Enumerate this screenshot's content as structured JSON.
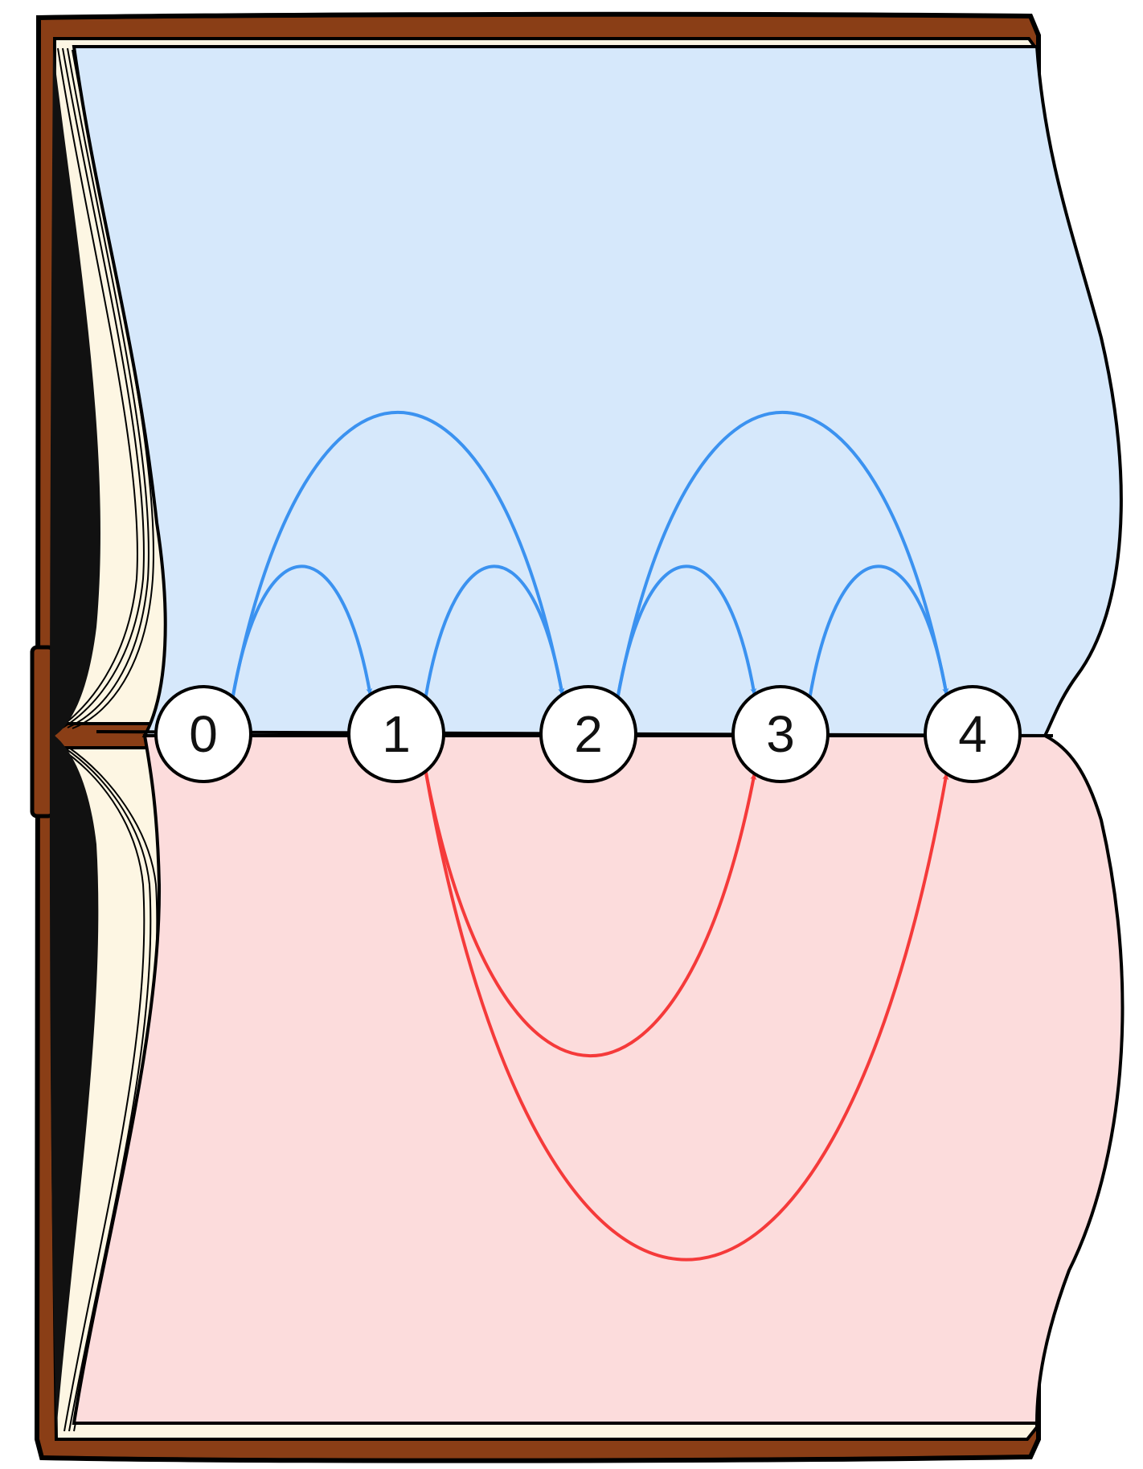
{
  "diagram": {
    "nodes": [
      "0",
      "1",
      "2",
      "3",
      "4"
    ],
    "edges_above": [
      {
        "from": "0",
        "to": "1"
      },
      {
        "from": "0",
        "to": "2"
      },
      {
        "from": "1",
        "to": "2"
      },
      {
        "from": "2",
        "to": "3"
      },
      {
        "from": "2",
        "to": "4"
      },
      {
        "from": "3",
        "to": "4"
      }
    ],
    "edges_below": [
      {
        "from": "1",
        "to": "3"
      },
      {
        "from": "1",
        "to": "4"
      }
    ]
  },
  "colors": {
    "upper_page": "#d6e8fb",
    "lower_page": "#fcdcdc",
    "blue_edge": "#3b92f0",
    "red_edge": "#f53a3a",
    "cover": "#8a3e16",
    "page_edges": "#fdf6e3",
    "outline": "#000000",
    "node_fill": "#ffffff"
  },
  "icons": {
    "background": "open-book-illustration"
  }
}
